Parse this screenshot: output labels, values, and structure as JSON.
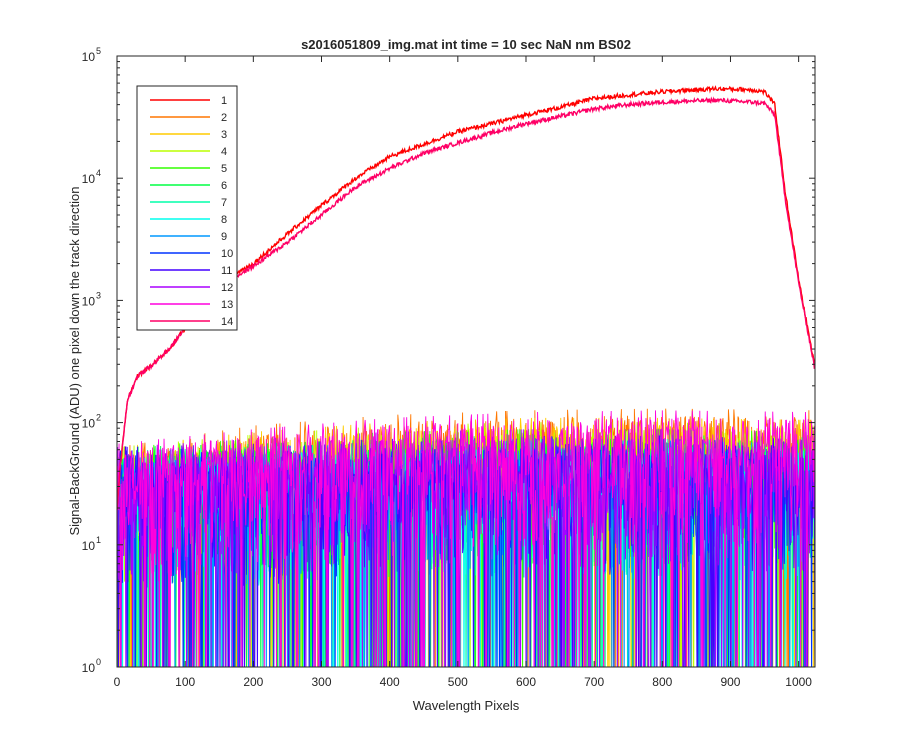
{
  "chart_data": {
    "type": "line",
    "title": "s2016051809_img.mat int time = 10 sec  NaN nm BS02",
    "xlabel": "Wavelength Pixels",
    "ylabel": "Signal-BackGround (ADU) one pixel down the track direction",
    "xlim": [
      0,
      1024
    ],
    "ylim": [
      1,
      100000
    ],
    "yscale": "log",
    "grid": false,
    "legend_position": "top-left",
    "x_ticks": [
      "0",
      "100",
      "200",
      "300",
      "400",
      "500",
      "600",
      "700",
      "800",
      "900",
      "1000"
    ],
    "y_ticks": [
      {
        "base": "10",
        "exp": "0"
      },
      {
        "base": "10",
        "exp": "1"
      },
      {
        "base": "10",
        "exp": "2"
      },
      {
        "base": "10",
        "exp": "3"
      },
      {
        "base": "10",
        "exp": "4"
      },
      {
        "base": "10",
        "exp": "5"
      }
    ],
    "series": [
      {
        "name": "1",
        "color": "#ff0000",
        "kind": "signal",
        "profile": [
          [
            0,
            20
          ],
          [
            5,
            45
          ],
          [
            15,
            150
          ],
          [
            30,
            240
          ],
          [
            50,
            290
          ],
          [
            80,
            420
          ],
          [
            100,
            600
          ],
          [
            150,
            1400
          ],
          [
            200,
            2000
          ],
          [
            250,
            3500
          ],
          [
            300,
            6000
          ],
          [
            350,
            10000
          ],
          [
            400,
            15000
          ],
          [
            450,
            19000
          ],
          [
            500,
            24000
          ],
          [
            550,
            28000
          ],
          [
            600,
            33000
          ],
          [
            650,
            38000
          ],
          [
            700,
            45000
          ],
          [
            750,
            48000
          ],
          [
            800,
            51000
          ],
          [
            850,
            53000
          ],
          [
            880,
            54000
          ],
          [
            930,
            53000
          ],
          [
            950,
            51000
          ],
          [
            965,
            40000
          ],
          [
            980,
            8000
          ],
          [
            1000,
            1500
          ],
          [
            1024,
            280
          ]
        ]
      },
      {
        "name": "2",
        "color": "#ff7700",
        "kind": "noise",
        "profile": [
          [
            0,
            30
          ],
          [
            200,
            45
          ],
          [
            400,
            55
          ],
          [
            600,
            60
          ],
          [
            800,
            62
          ],
          [
            1024,
            60
          ]
        ]
      },
      {
        "name": "3",
        "color": "#ffcc00",
        "kind": "noise",
        "profile": [
          [
            0,
            30
          ],
          [
            200,
            40
          ],
          [
            400,
            48
          ],
          [
            600,
            52
          ],
          [
            800,
            52
          ],
          [
            1024,
            50
          ]
        ]
      },
      {
        "name": "4",
        "color": "#bbff00",
        "kind": "noise",
        "profile": [
          [
            0,
            30
          ],
          [
            200,
            38
          ],
          [
            400,
            45
          ],
          [
            600,
            48
          ],
          [
            800,
            48
          ],
          [
            1024,
            45
          ]
        ]
      },
      {
        "name": "5",
        "color": "#33ff00",
        "kind": "noise",
        "profile": [
          [
            0,
            30
          ],
          [
            200,
            35
          ],
          [
            400,
            40
          ],
          [
            600,
            42
          ],
          [
            800,
            42
          ],
          [
            1024,
            40
          ]
        ]
      },
      {
        "name": "6",
        "color": "#00ff44",
        "kind": "noise",
        "profile": [
          [
            0,
            30
          ],
          [
            200,
            32
          ],
          [
            400,
            35
          ],
          [
            600,
            38
          ],
          [
            800,
            38
          ],
          [
            1024,
            36
          ]
        ]
      },
      {
        "name": "7",
        "color": "#00ffaa",
        "kind": "noise",
        "profile": [
          [
            0,
            28
          ],
          [
            200,
            30
          ],
          [
            400,
            33
          ],
          [
            600,
            35
          ],
          [
            800,
            35
          ],
          [
            1024,
            33
          ]
        ]
      },
      {
        "name": "8",
        "color": "#00ffee",
        "kind": "noise",
        "profile": [
          [
            0,
            28
          ],
          [
            200,
            30
          ],
          [
            400,
            32
          ],
          [
            600,
            34
          ],
          [
            800,
            34
          ],
          [
            1024,
            32
          ]
        ]
      },
      {
        "name": "9",
        "color": "#0099ff",
        "kind": "noise",
        "profile": [
          [
            0,
            28
          ],
          [
            200,
            30
          ],
          [
            400,
            32
          ],
          [
            600,
            34
          ],
          [
            800,
            34
          ],
          [
            1024,
            32
          ]
        ]
      },
      {
        "name": "10",
        "color": "#0033ff",
        "kind": "noise",
        "profile": [
          [
            0,
            28
          ],
          [
            200,
            30
          ],
          [
            400,
            33
          ],
          [
            600,
            35
          ],
          [
            800,
            35
          ],
          [
            1024,
            33
          ]
        ]
      },
      {
        "name": "11",
        "color": "#4400ff",
        "kind": "noise",
        "profile": [
          [
            0,
            30
          ],
          [
            200,
            32
          ],
          [
            400,
            35
          ],
          [
            600,
            37
          ],
          [
            800,
            37
          ],
          [
            1024,
            35
          ]
        ]
      },
      {
        "name": "12",
        "color": "#aa00ff",
        "kind": "noise",
        "profile": [
          [
            0,
            30
          ],
          [
            200,
            35
          ],
          [
            400,
            40
          ],
          [
            600,
            42
          ],
          [
            800,
            42
          ],
          [
            1024,
            40
          ]
        ]
      },
      {
        "name": "13",
        "color": "#ff00dd",
        "kind": "noise",
        "profile": [
          [
            0,
            32
          ],
          [
            200,
            42
          ],
          [
            400,
            52
          ],
          [
            600,
            58
          ],
          [
            800,
            60
          ],
          [
            1024,
            58
          ]
        ]
      },
      {
        "name": "14",
        "color": "#ff0066",
        "kind": "signal",
        "profile": [
          [
            0,
            20
          ],
          [
            5,
            45
          ],
          [
            15,
            150
          ],
          [
            30,
            240
          ],
          [
            50,
            290
          ],
          [
            80,
            420
          ],
          [
            100,
            600
          ],
          [
            150,
            1300
          ],
          [
            200,
            1900
          ],
          [
            250,
            3000
          ],
          [
            300,
            5000
          ],
          [
            350,
            8500
          ],
          [
            400,
            12000
          ],
          [
            450,
            16000
          ],
          [
            500,
            19500
          ],
          [
            550,
            23500
          ],
          [
            600,
            28000
          ],
          [
            650,
            32000
          ],
          [
            700,
            37000
          ],
          [
            750,
            40000
          ],
          [
            800,
            42000
          ],
          [
            850,
            43000
          ],
          [
            880,
            43500
          ],
          [
            930,
            42000
          ],
          [
            950,
            41000
          ],
          [
            965,
            33000
          ],
          [
            980,
            7000
          ],
          [
            1000,
            1400
          ],
          [
            1024,
            270
          ]
        ]
      }
    ]
  }
}
